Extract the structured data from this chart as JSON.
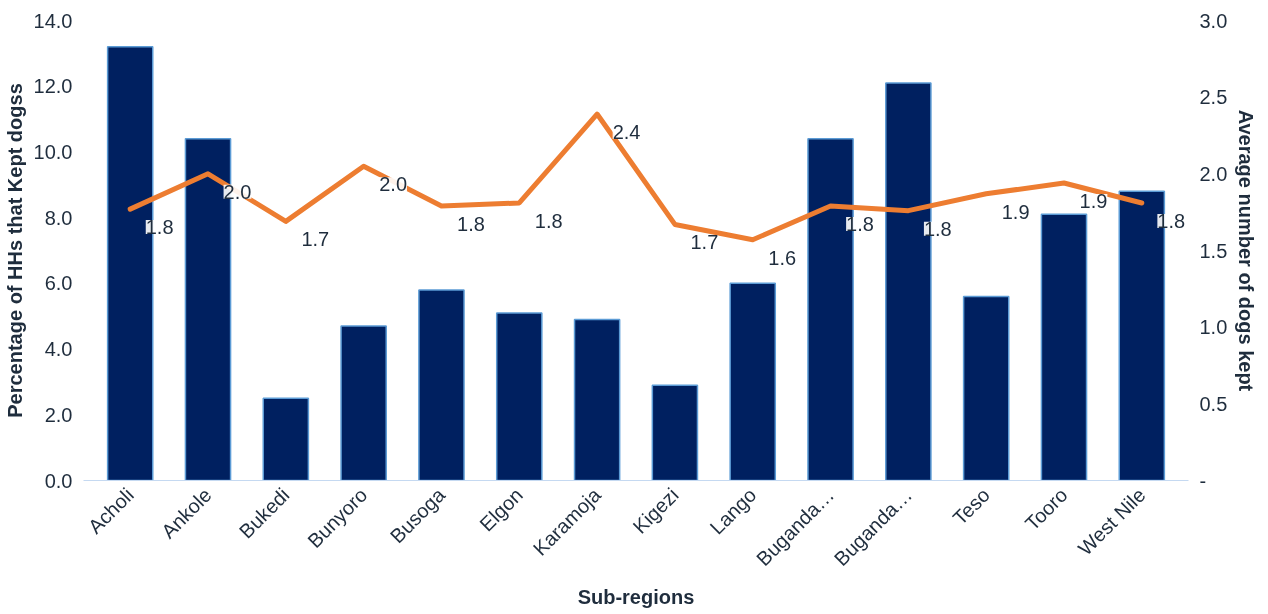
{
  "chart_data": {
    "type": "bar",
    "xlabel": "Sub-regions",
    "ylabel": "Percentage of HHs that Kept dogss",
    "y2label": "Average number of dogs kept",
    "categories": [
      "Acholi",
      "Ankole",
      "Bukedi",
      "Bunyoro",
      "Busoga",
      "Elgon",
      "Karamoja",
      "Kigezi",
      "Lango",
      "Buganda…",
      "Buganda…",
      "Teso",
      "Tooro",
      "West Nile"
    ],
    "series": [
      {
        "color": "#002060",
        "values": [
          13.2,
          10.4,
          2.5,
          4.7,
          5.8,
          5.1,
          4.9,
          2.9,
          6.0,
          10.4,
          12.1,
          5.6,
          8.1,
          8.8
        ]
      },
      {
        "type": "line",
        "axis": "y2",
        "color": "#ed7d31",
        "values": [
          1.77,
          2.0,
          1.69,
          2.05,
          1.79,
          1.81,
          2.39,
          1.67,
          1.57,
          1.79,
          1.76,
          1.87,
          1.94,
          1.81
        ],
        "value_labels": [
          "1.8",
          "2.0",
          "1.7",
          "2.0",
          "1.8",
          "1.8",
          "2.4",
          "1.7",
          "1.6",
          "1.8",
          "1.8",
          "1.9",
          "1.9",
          "1.8"
        ]
      }
    ],
    "ylim": [
      0,
      14
    ],
    "yticks": [
      {
        "value": 0,
        "label": "0.0"
      },
      {
        "value": 2,
        "label": "2.0"
      },
      {
        "value": 4,
        "label": "4.0"
      },
      {
        "value": 6,
        "label": "6.0"
      },
      {
        "value": 8,
        "label": "8.0"
      },
      {
        "value": 10,
        "label": "10.0"
      },
      {
        "value": 12,
        "label": "12.0"
      },
      {
        "value": 14,
        "label": "14.0"
      }
    ],
    "y2lim": [
      0,
      3
    ],
    "y2ticks": [
      {
        "value": 0,
        "label": "-"
      },
      {
        "value": 0.5,
        "label": "0.5"
      },
      {
        "value": 1,
        "label": "1.0"
      },
      {
        "value": 1.5,
        "label": "1.5"
      },
      {
        "value": 2,
        "label": "2.0"
      },
      {
        "value": 2.5,
        "label": "2.5"
      },
      {
        "value": 3,
        "label": "3.0"
      }
    ],
    "grid": false
  }
}
